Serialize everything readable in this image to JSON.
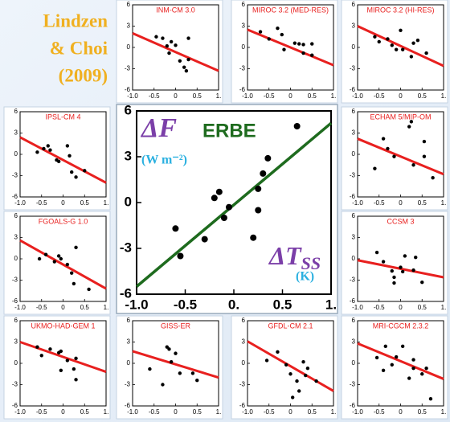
{
  "credit": [
    "Lindzen",
    "& Choi",
    "(2009)"
  ],
  "chart_data": [
    {
      "type": "scatter",
      "y_label": "ΔF",
      "dataset": "ERBE",
      "y_unit": "(W m⁻²)",
      "x_label": "ΔT",
      "x_label_sub": "SS",
      "x_unit": "(K)",
      "x": [
        -0.6,
        -0.55,
        -0.3,
        -0.2,
        -0.15,
        -0.1,
        -0.05,
        0.2,
        0.25,
        0.3,
        0.35,
        0.65,
        0.25
      ],
      "y": [
        -1.7,
        -3.5,
        -2.4,
        0.3,
        0.7,
        -1,
        -0.3,
        -2.3,
        0.9,
        1.9,
        2.9,
        5.0,
        -0.5
      ],
      "color": "#000000",
      "fit_x": [
        -1,
        1
      ],
      "fit_y": [
        -5.5,
        5.2
      ],
      "fit_color": "#1e6b1e",
      "xlim": [
        -1,
        1
      ],
      "ylim": [
        -6,
        6
      ],
      "xticks": [
        {
          "value": -1,
          "label": "-1.0"
        },
        -0.5,
        {
          "value": 0,
          "label": "0."
        },
        0.5,
        {
          "value": 1,
          "label": "1."
        }
      ],
      "yticks": [
        -6,
        -3,
        0,
        3,
        6
      ]
    },
    {
      "type": "scatter",
      "title": "INM-CM 3.0",
      "x": [
        -0.45,
        -0.3,
        -0.2,
        -0.15,
        0,
        0.1,
        0.2,
        0.3,
        0.25,
        0.3,
        -0.1
      ],
      "y": [
        1.5,
        1.3,
        0.2,
        -0.8,
        0.3,
        -1.9,
        -2.8,
        -1.7,
        -3.3,
        1.3,
        0.8
      ],
      "color": "#000000",
      "fit_x": [
        -1,
        1
      ],
      "fit_y": [
        2,
        -3.3
      ],
      "fit_color": "#e8201f",
      "xlim": [
        -1,
        1
      ],
      "ylim": [
        -6,
        6
      ],
      "xticks": [
        {
          "value": -1,
          "label": "-1.0"
        },
        -0.5,
        0,
        0.5,
        {
          "value": 1,
          "label": "1."
        }
      ],
      "yticks": [
        -6,
        -3,
        0,
        3,
        6
      ]
    },
    {
      "type": "scatter",
      "title": "MIROC 3.2 (MED-RES)",
      "x": [
        -0.7,
        -0.5,
        -0.3,
        -0.2,
        -0.15,
        0.1,
        0.2,
        0.3,
        0.3,
        0.5,
        0.5
      ],
      "y": [
        2.2,
        1.2,
        2.7,
        1.8,
        -0.3,
        0.6,
        0.5,
        0.4,
        -0.8,
        0.5,
        -1.1
      ],
      "color": "#000000",
      "fit_x": [
        -1,
        1
      ],
      "fit_y": [
        2.5,
        -2.5
      ],
      "fit_color": "#e8201f",
      "xlim": [
        -1,
        1
      ],
      "ylim": [
        -6,
        6
      ],
      "xticks": [
        {
          "value": -1,
          "label": "-1.0"
        },
        -0.5,
        0,
        0.5,
        {
          "value": 1,
          "label": "1."
        }
      ],
      "yticks": [
        -6,
        -3,
        0,
        3,
        6
      ]
    },
    {
      "type": "scatter",
      "title": "MIROC 3.2 (HI-RES)",
      "x": [
        -0.6,
        -0.5,
        -0.3,
        -0.2,
        -0.1,
        0,
        0.05,
        0.25,
        0.3,
        0.4,
        0.6
      ],
      "y": [
        1.5,
        0.8,
        1.2,
        0.3,
        -0.3,
        2.4,
        -0.3,
        -1.3,
        0.6,
        1.0,
        -0.8
      ],
      "color": "#000000",
      "fit_x": [
        -1,
        1
      ],
      "fit_y": [
        3,
        -2.6
      ],
      "fit_color": "#e8201f",
      "xlim": [
        -1,
        1
      ],
      "ylim": [
        -6,
        6
      ],
      "xticks": [
        {
          "value": -1,
          "label": "-1.0"
        },
        -0.5,
        0,
        0.5,
        {
          "value": 1,
          "label": "1."
        }
      ],
      "yticks": [
        -6,
        -3,
        0,
        3,
        6
      ]
    },
    {
      "type": "scatter",
      "title": "IPSL-CM 4",
      "x": [
        -0.6,
        -0.45,
        -0.35,
        -0.3,
        -0.15,
        -0.1,
        0.1,
        0.15,
        0.2,
        0.3,
        0.5
      ],
      "y": [
        0.3,
        0.8,
        1.2,
        0.6,
        -0.8,
        -1,
        1.2,
        -0.2,
        -2.5,
        -3.2,
        -2.3
      ],
      "color": "#000000",
      "fit_x": [
        -1,
        1
      ],
      "fit_y": [
        2.4,
        -4
      ],
      "fit_color": "#e8201f",
      "xlim": [
        -1,
        1
      ],
      "ylim": [
        -6,
        6
      ],
      "xticks": [
        {
          "value": -1,
          "label": "-1.0"
        },
        -0.5,
        0,
        0.5,
        {
          "value": 1,
          "label": "1."
        }
      ],
      "yticks": [
        -6,
        -3,
        0,
        3,
        6
      ]
    },
    {
      "type": "scatter",
      "title": "ECHAM 5/MIP-OM",
      "x": [
        -0.6,
        -0.4,
        -0.3,
        -0.15,
        0.2,
        0.25,
        0.3,
        0.55,
        0.55,
        0.75
      ],
      "y": [
        -2,
        2.2,
        0.8,
        -0.3,
        3.9,
        4.6,
        -1.5,
        -0.3,
        1.8,
        -3.3
      ],
      "color": "#000000",
      "fit_x": [
        -1,
        1
      ],
      "fit_y": [
        2.2,
        -2.8
      ],
      "fit_color": "#e8201f",
      "xlim": [
        -1,
        1
      ],
      "ylim": [
        -6,
        6
      ],
      "xticks": [
        {
          "value": -1,
          "label": "-1.0"
        },
        -0.5,
        0,
        0.5,
        {
          "value": 1,
          "label": "1."
        }
      ],
      "yticks": [
        -6,
        -3,
        0,
        3,
        6
      ]
    },
    {
      "type": "scatter",
      "title": "FGOALS-G 1.0",
      "x": [
        -0.55,
        -0.4,
        -0.2,
        -0.1,
        -0.05,
        0.1,
        0.2,
        0.25,
        0.3,
        0.6
      ],
      "y": [
        0.0,
        0.6,
        -0.4,
        0.4,
        0,
        -0.8,
        -2.0,
        -3.5,
        1.6,
        -4.3
      ],
      "color": "#000000",
      "fit_x": [
        -1,
        1
      ],
      "fit_y": [
        2.6,
        -4.2
      ],
      "fit_color": "#e8201f",
      "xlim": [
        -1,
        1
      ],
      "ylim": [
        -6,
        6
      ],
      "xticks": [
        {
          "value": -1,
          "label": "-1.0"
        },
        -0.5,
        0,
        0.5,
        {
          "value": 1,
          "label": "1."
        }
      ],
      "yticks": [
        -6,
        -3,
        0,
        3,
        6
      ]
    },
    {
      "type": "scatter",
      "title": "CCSM 3",
      "x": [
        -0.55,
        -0.4,
        -0.2,
        -0.15,
        -0.15,
        0,
        0.05,
        0.3,
        0.35,
        0.5,
        0.1
      ],
      "y": [
        0.9,
        -0.4,
        -1.7,
        -2.6,
        -3.4,
        -1.2,
        -1.8,
        -1.6,
        0.2,
        -3.3,
        0.4
      ],
      "color": "#000000",
      "fit_x": [
        -1,
        1
      ],
      "fit_y": [
        -0.2,
        -2.6
      ],
      "fit_color": "#e8201f",
      "xlim": [
        -1,
        1
      ],
      "ylim": [
        -6,
        6
      ],
      "xticks": [
        {
          "value": -1,
          "label": "-1.0"
        },
        -0.5,
        0,
        0.5,
        {
          "value": 1,
          "label": "1."
        }
      ],
      "yticks": [
        -6,
        -3,
        0,
        3,
        6
      ]
    },
    {
      "type": "scatter",
      "title": "UKMO-HAD-GEM 1",
      "x": [
        -0.6,
        -0.5,
        -0.3,
        -0.1,
        -0.05,
        -0.05,
        0.1,
        0.25,
        0.3,
        0.3
      ],
      "y": [
        2.3,
        1.1,
        2.0,
        1.5,
        1.7,
        -1.0,
        0.4,
        -0.8,
        0.7,
        -2.3
      ],
      "color": "#000000",
      "fit_x": [
        -1,
        1
      ],
      "fit_y": [
        3,
        -1.2
      ],
      "fit_color": "#e8201f",
      "xlim": [
        -1,
        1
      ],
      "ylim": [
        -6,
        6
      ],
      "xticks": [
        {
          "value": -1,
          "label": "-1.0"
        },
        -0.5,
        0,
        0.5,
        {
          "value": 1,
          "label": "1."
        }
      ],
      "yticks": [
        -6,
        -3,
        0,
        3,
        6
      ]
    },
    {
      "type": "scatter",
      "title": "GISS-ER",
      "x": [
        -0.6,
        -0.3,
        -0.2,
        -0.15,
        -0.1,
        0,
        0.1,
        0.4,
        0.5
      ],
      "y": [
        -0.8,
        -3,
        2.3,
        2.0,
        0.2,
        1.4,
        -1.4,
        -1.4,
        -2.4
      ],
      "color": "#000000",
      "fit_x": [
        -1,
        1
      ],
      "fit_y": [
        1.7,
        -2
      ],
      "fit_color": "#e8201f",
      "xlim": [
        -1,
        1
      ],
      "ylim": [
        -6,
        6
      ],
      "xticks": [
        {
          "value": -1,
          "label": "-1.0"
        },
        -0.5,
        0,
        0.5,
        {
          "value": 1,
          "label": "1."
        }
      ],
      "yticks": [
        -6,
        -3,
        0,
        3,
        6
      ]
    },
    {
      "type": "scatter",
      "title": "GFDL-CM 2.1",
      "x": [
        -0.55,
        -0.3,
        -0.1,
        0,
        0.05,
        0.15,
        0.2,
        0.3,
        0.35,
        0.4,
        0.6
      ],
      "y": [
        0.4,
        1.6,
        -0.2,
        -1.5,
        -4.8,
        -2.5,
        -3.9,
        0.2,
        -1.7,
        -0.7,
        -2.5
      ],
      "color": "#000000",
      "fit_x": [
        -1,
        1
      ],
      "fit_y": [
        3.1,
        -3.9
      ],
      "fit_color": "#e8201f",
      "xlim": [
        -1,
        1
      ],
      "ylim": [
        -6,
        6
      ],
      "xticks": [
        {
          "value": -1,
          "label": "-1.0"
        },
        -0.5,
        0,
        0.5,
        {
          "value": 1,
          "label": "1."
        }
      ],
      "yticks": [
        -6,
        -3,
        0,
        3,
        6
      ]
    },
    {
      "type": "scatter",
      "title": "MRI-CGCM 2.3.2",
      "x": [
        -0.55,
        -0.4,
        -0.35,
        -0.2,
        -0.1,
        0.05,
        0.2,
        0.3,
        0.5,
        0.6,
        0.7,
        0.3
      ],
      "y": [
        0.8,
        -1.0,
        2.4,
        -0.2,
        0.9,
        2.4,
        -2.1,
        -0.7,
        -1.5,
        -0.7,
        -5.0,
        0.5
      ],
      "color": "#000000",
      "fit_x": [
        -1,
        1
      ],
      "fit_y": [
        2.8,
        -2.2
      ],
      "fit_color": "#e8201f",
      "xlim": [
        -1,
        1
      ],
      "ylim": [
        -6,
        6
      ],
      "xticks": [
        {
          "value": -1,
          "label": "-1.0"
        },
        -0.5,
        0,
        0.5,
        {
          "value": 1,
          "label": "1."
        }
      ],
      "yticks": [
        -6,
        -3,
        0,
        3,
        6
      ]
    }
  ]
}
